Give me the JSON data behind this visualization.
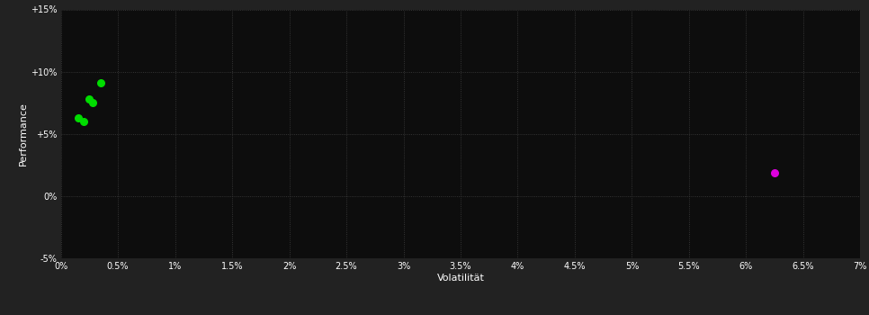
{
  "background_color": "#222222",
  "plot_bg_color": "#0d0d0d",
  "grid_color": "#404040",
  "text_color": "#ffffff",
  "xlabel": "Volatilität",
  "ylabel": "Performance",
  "xlim": [
    0,
    0.07
  ],
  "ylim": [
    -0.05,
    0.15
  ],
  "xticks": [
    0.0,
    0.005,
    0.01,
    0.015,
    0.02,
    0.025,
    0.03,
    0.035,
    0.04,
    0.045,
    0.05,
    0.055,
    0.06,
    0.065,
    0.07
  ],
  "xtick_labels": [
    "0%",
    "0.5%",
    "1%",
    "1.5%",
    "2%",
    "2.5%",
    "3%",
    "3.5%",
    "4%",
    "4.5%",
    "5%",
    "5.5%",
    "6%",
    "6.5%",
    "7%"
  ],
  "yticks": [
    -0.05,
    0.0,
    0.05,
    0.1,
    0.15
  ],
  "ytick_labels": [
    "-5%",
    "0%",
    "+5%",
    "+10%",
    "+15%"
  ],
  "green_points": [
    [
      0.0015,
      0.063
    ],
    [
      0.002,
      0.06
    ],
    [
      0.0025,
      0.078
    ],
    [
      0.0028,
      0.075
    ],
    [
      0.0035,
      0.091
    ]
  ],
  "magenta_points": [
    [
      0.0625,
      0.019
    ]
  ],
  "green_color": "#00dd00",
  "magenta_color": "#dd00dd",
  "marker_size": 30
}
